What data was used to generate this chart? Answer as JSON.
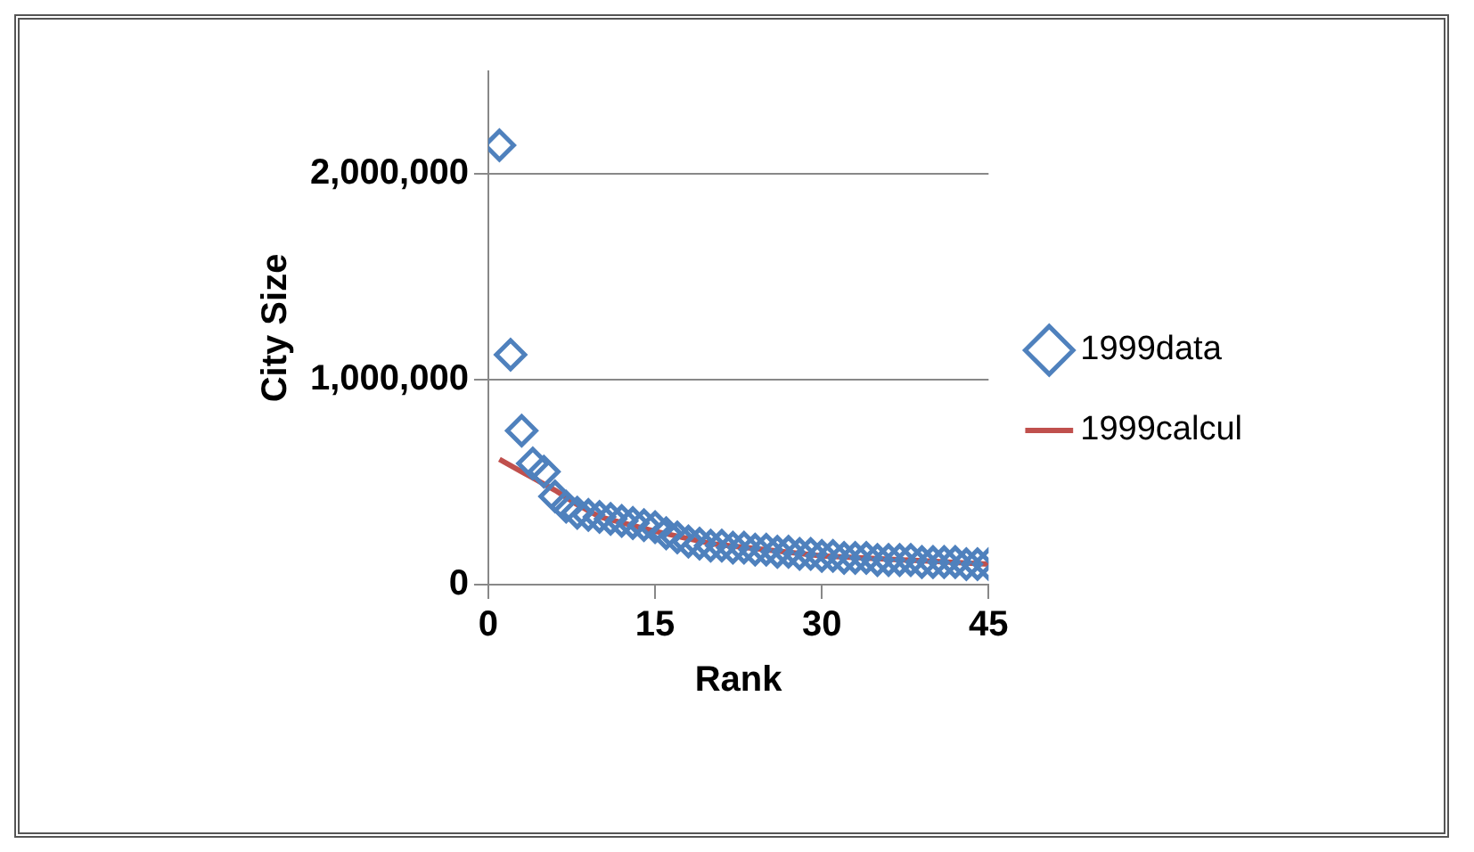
{
  "chart_data": {
    "type": "scatter",
    "xlabel": "Rank",
    "ylabel": "City Size",
    "xlim": [
      0,
      45
    ],
    "xticks": [
      0,
      15,
      30,
      45
    ],
    "ylim": [
      0,
      2500000
    ],
    "yticks": [
      {
        "value": 0,
        "label": "0"
      },
      {
        "value": 1000000,
        "label": "1,000,000"
      },
      {
        "value": 2000000,
        "label": "2,000,000"
      }
    ],
    "grid": "y",
    "legend": "right",
    "series": [
      {
        "name": "1999data",
        "marker": "diamond",
        "color": "#4f81bd",
        "x": [
          1,
          2,
          3,
          4,
          5,
          6,
          7,
          8,
          9,
          10,
          11,
          12,
          13,
          14,
          15,
          16,
          17,
          18,
          19,
          20,
          21,
          22,
          23,
          24,
          25,
          26,
          27,
          28,
          29,
          30,
          31,
          32,
          33,
          34,
          35,
          36,
          37,
          38,
          39,
          40,
          41,
          42,
          43,
          44,
          45
        ],
        "values": [
          2140000,
          1120000,
          750000,
          590000,
          550000,
          430000,
          380000,
          350000,
          340000,
          330000,
          320000,
          310000,
          300000,
          290000,
          280000,
          250000,
          230000,
          210000,
          200000,
          190000,
          190000,
          180000,
          180000,
          170000,
          170000,
          160000,
          160000,
          150000,
          150000,
          140000,
          140000,
          130000,
          130000,
          130000,
          120000,
          120000,
          120000,
          120000,
          110000,
          110000,
          110000,
          110000,
          100000,
          100000,
          100000
        ]
      },
      {
        "name": "1999calcul",
        "type": "line",
        "marker": "none",
        "color": "#c0504d",
        "x": [
          1,
          2,
          3,
          4,
          5,
          6,
          8,
          10,
          15,
          20,
          30,
          45
        ],
        "values": [
          610000,
          580000,
          550000,
          520000,
          490000,
          460000,
          390000,
          330000,
          260000,
          200000,
          140000,
          100000
        ]
      }
    ]
  }
}
